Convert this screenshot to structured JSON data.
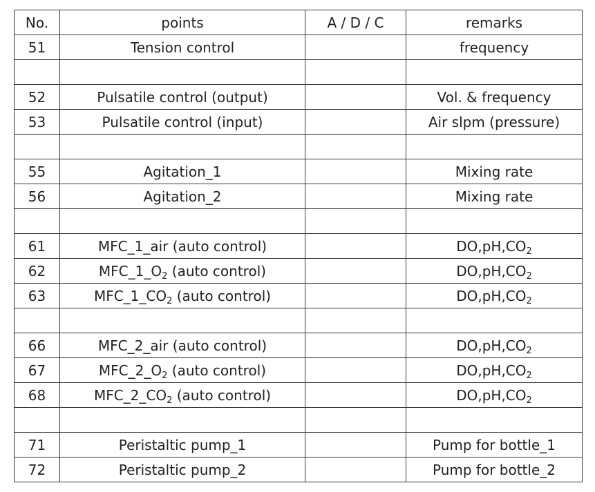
{
  "table": {
    "headers": {
      "no": "No.",
      "points": "points",
      "adc": "A / D / C",
      "remarks": "remarks"
    },
    "rows": [
      {
        "no": "51",
        "points": [
          {
            "t": "Tension control"
          }
        ],
        "adc": "",
        "remarks": [
          {
            "t": "frequency"
          }
        ]
      },
      {
        "no": "",
        "points": [],
        "adc": "",
        "remarks": []
      },
      {
        "no": "52",
        "points": [
          {
            "t": "Pulsatile control (output)"
          }
        ],
        "adc": "",
        "remarks": [
          {
            "t": "Vol. & frequency"
          }
        ]
      },
      {
        "no": "53",
        "points": [
          {
            "t": "Pulsatile control (input)"
          }
        ],
        "adc": "",
        "remarks": [
          {
            "t": "Air slpm (pressure)"
          }
        ]
      },
      {
        "no": "",
        "points": [],
        "adc": "",
        "remarks": []
      },
      {
        "no": "55",
        "points": [
          {
            "t": "Agitation_1"
          }
        ],
        "adc": "",
        "remarks": [
          {
            "t": "Mixing rate"
          }
        ]
      },
      {
        "no": "56",
        "points": [
          {
            "t": "Agitation_2"
          }
        ],
        "adc": "",
        "remarks": [
          {
            "t": "Mixing rate"
          }
        ]
      },
      {
        "no": "",
        "points": [],
        "adc": "",
        "remarks": []
      },
      {
        "no": "61",
        "points": [
          {
            "t": "MFC_1_air (auto control)"
          }
        ],
        "adc": "",
        "remarks": [
          {
            "t": "DO,pH,CO"
          },
          {
            "t": "2",
            "sub": true
          }
        ]
      },
      {
        "no": "62",
        "points": [
          {
            "t": "MFC_1_O"
          },
          {
            "t": "2",
            "sub": true
          },
          {
            "t": " (auto control)"
          }
        ],
        "adc": "",
        "remarks": [
          {
            "t": "DO,pH,CO"
          },
          {
            "t": "2",
            "sub": true
          }
        ]
      },
      {
        "no": "63",
        "points": [
          {
            "t": "MFC_1_CO"
          },
          {
            "t": "2",
            "sub": true
          },
          {
            "t": " (auto control)"
          }
        ],
        "adc": "",
        "remarks": [
          {
            "t": "DO,pH,CO"
          },
          {
            "t": "2",
            "sub": true
          }
        ]
      },
      {
        "no": "",
        "points": [],
        "adc": "",
        "remarks": []
      },
      {
        "no": "66",
        "points": [
          {
            "t": "MFC_2_air (auto control)"
          }
        ],
        "adc": "",
        "remarks": [
          {
            "t": "DO,pH,CO"
          },
          {
            "t": "2",
            "sub": true
          }
        ]
      },
      {
        "no": "67",
        "points": [
          {
            "t": "MFC_2_O"
          },
          {
            "t": "2",
            "sub": true
          },
          {
            "t": " (auto control)"
          }
        ],
        "adc": "",
        "remarks": [
          {
            "t": "DO,pH,CO"
          },
          {
            "t": "2",
            "sub": true
          }
        ]
      },
      {
        "no": "68",
        "points": [
          {
            "t": "MFC_2_CO"
          },
          {
            "t": "2",
            "sub": true
          },
          {
            "t": " (auto control)"
          }
        ],
        "adc": "",
        "remarks": [
          {
            "t": "DO,pH,CO"
          },
          {
            "t": "2",
            "sub": true
          }
        ]
      },
      {
        "no": "",
        "points": [],
        "adc": "",
        "remarks": []
      },
      {
        "no": "71",
        "points": [
          {
            "t": "Peristaltic pump_1"
          }
        ],
        "adc": "",
        "remarks": [
          {
            "t": "Pump for bottle_1"
          }
        ]
      },
      {
        "no": "72",
        "points": [
          {
            "t": "Peristaltic pump_2"
          }
        ],
        "adc": "",
        "remarks": [
          {
            "t": "Pump for bottle_2"
          }
        ]
      }
    ]
  }
}
